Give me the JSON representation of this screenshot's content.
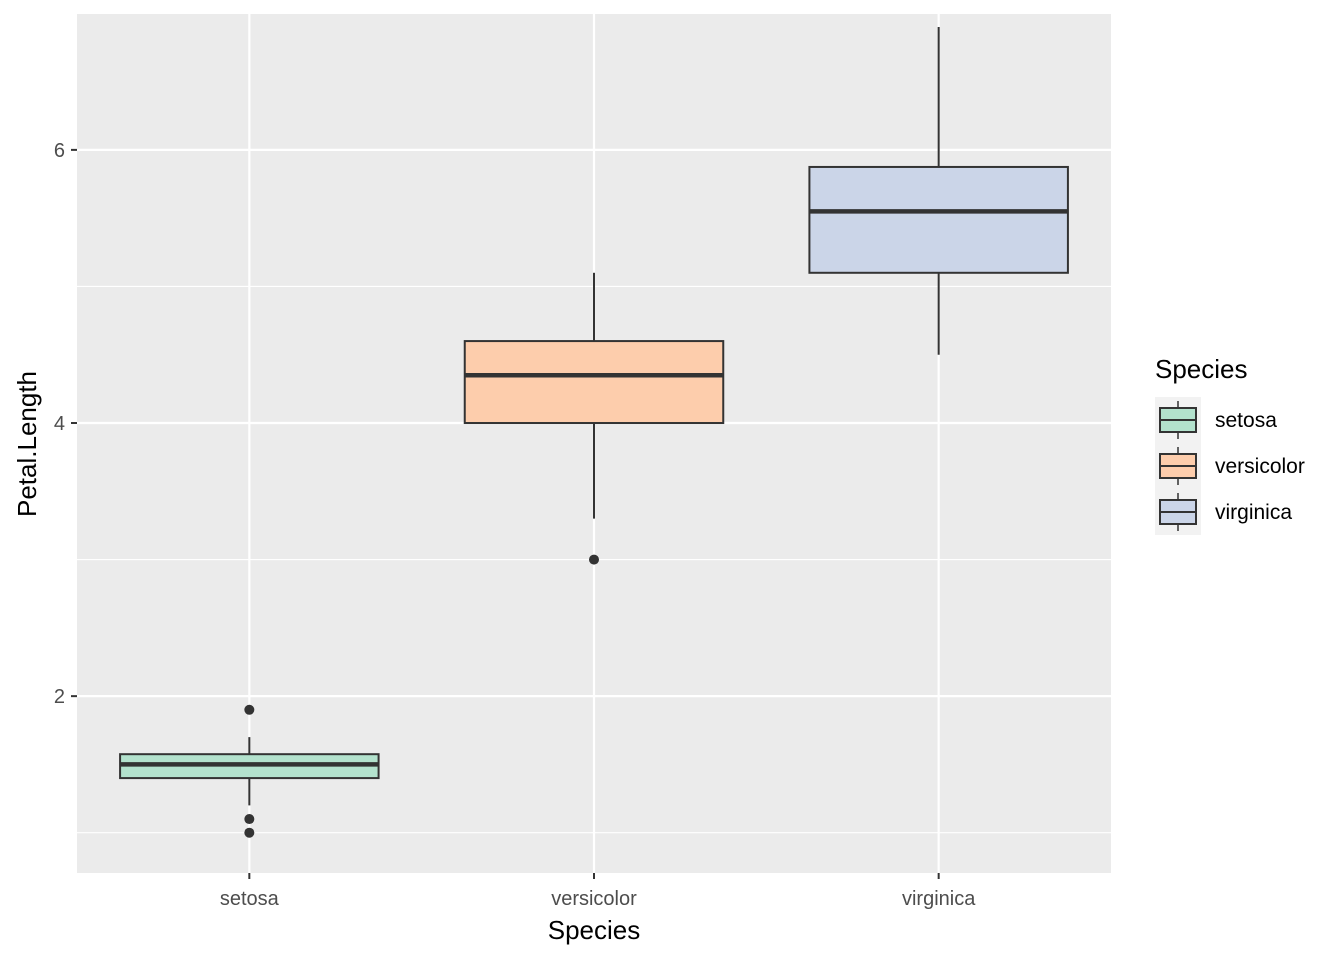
{
  "chart_data": {
    "type": "boxplot",
    "title": "",
    "xlabel": "Species",
    "ylabel": "Petal.Length",
    "categories": [
      "setosa",
      "versicolor",
      "virginica"
    ],
    "ylim": [
      0.705,
      6.995
    ],
    "yticks": [
      2,
      4,
      6
    ],
    "yminor": [
      1,
      3,
      5
    ],
    "grid": true,
    "boxes": [
      {
        "category": "setosa",
        "whisker_low": 1.2,
        "q1": 1.4,
        "median": 1.5,
        "q3": 1.575,
        "whisker_high": 1.7,
        "outliers": [
          1.1,
          1.0,
          1.9
        ],
        "fill": "#B3E2CD"
      },
      {
        "category": "versicolor",
        "whisker_low": 3.3,
        "q1": 4.0,
        "median": 4.35,
        "q3": 4.6,
        "whisker_high": 5.1,
        "outliers": [
          3.0
        ],
        "fill": "#FDCDAC"
      },
      {
        "category": "virginica",
        "whisker_low": 4.5,
        "q1": 5.1,
        "median": 5.55,
        "q3": 5.875,
        "whisker_high": 6.9,
        "outliers": [],
        "fill": "#CBD5E8"
      }
    ],
    "legend": {
      "title": "Species",
      "position": "right",
      "items": [
        {
          "label": "setosa",
          "fill": "#B3E2CD"
        },
        {
          "label": "versicolor",
          "fill": "#FDCDAC"
        },
        {
          "label": "virginica",
          "fill": "#CBD5E8"
        }
      ]
    },
    "colors": {
      "panel": "#EBEBEB",
      "grid": "#FFFFFF",
      "box_stroke": "#333333",
      "tick_text": "#4D4D4D"
    }
  }
}
